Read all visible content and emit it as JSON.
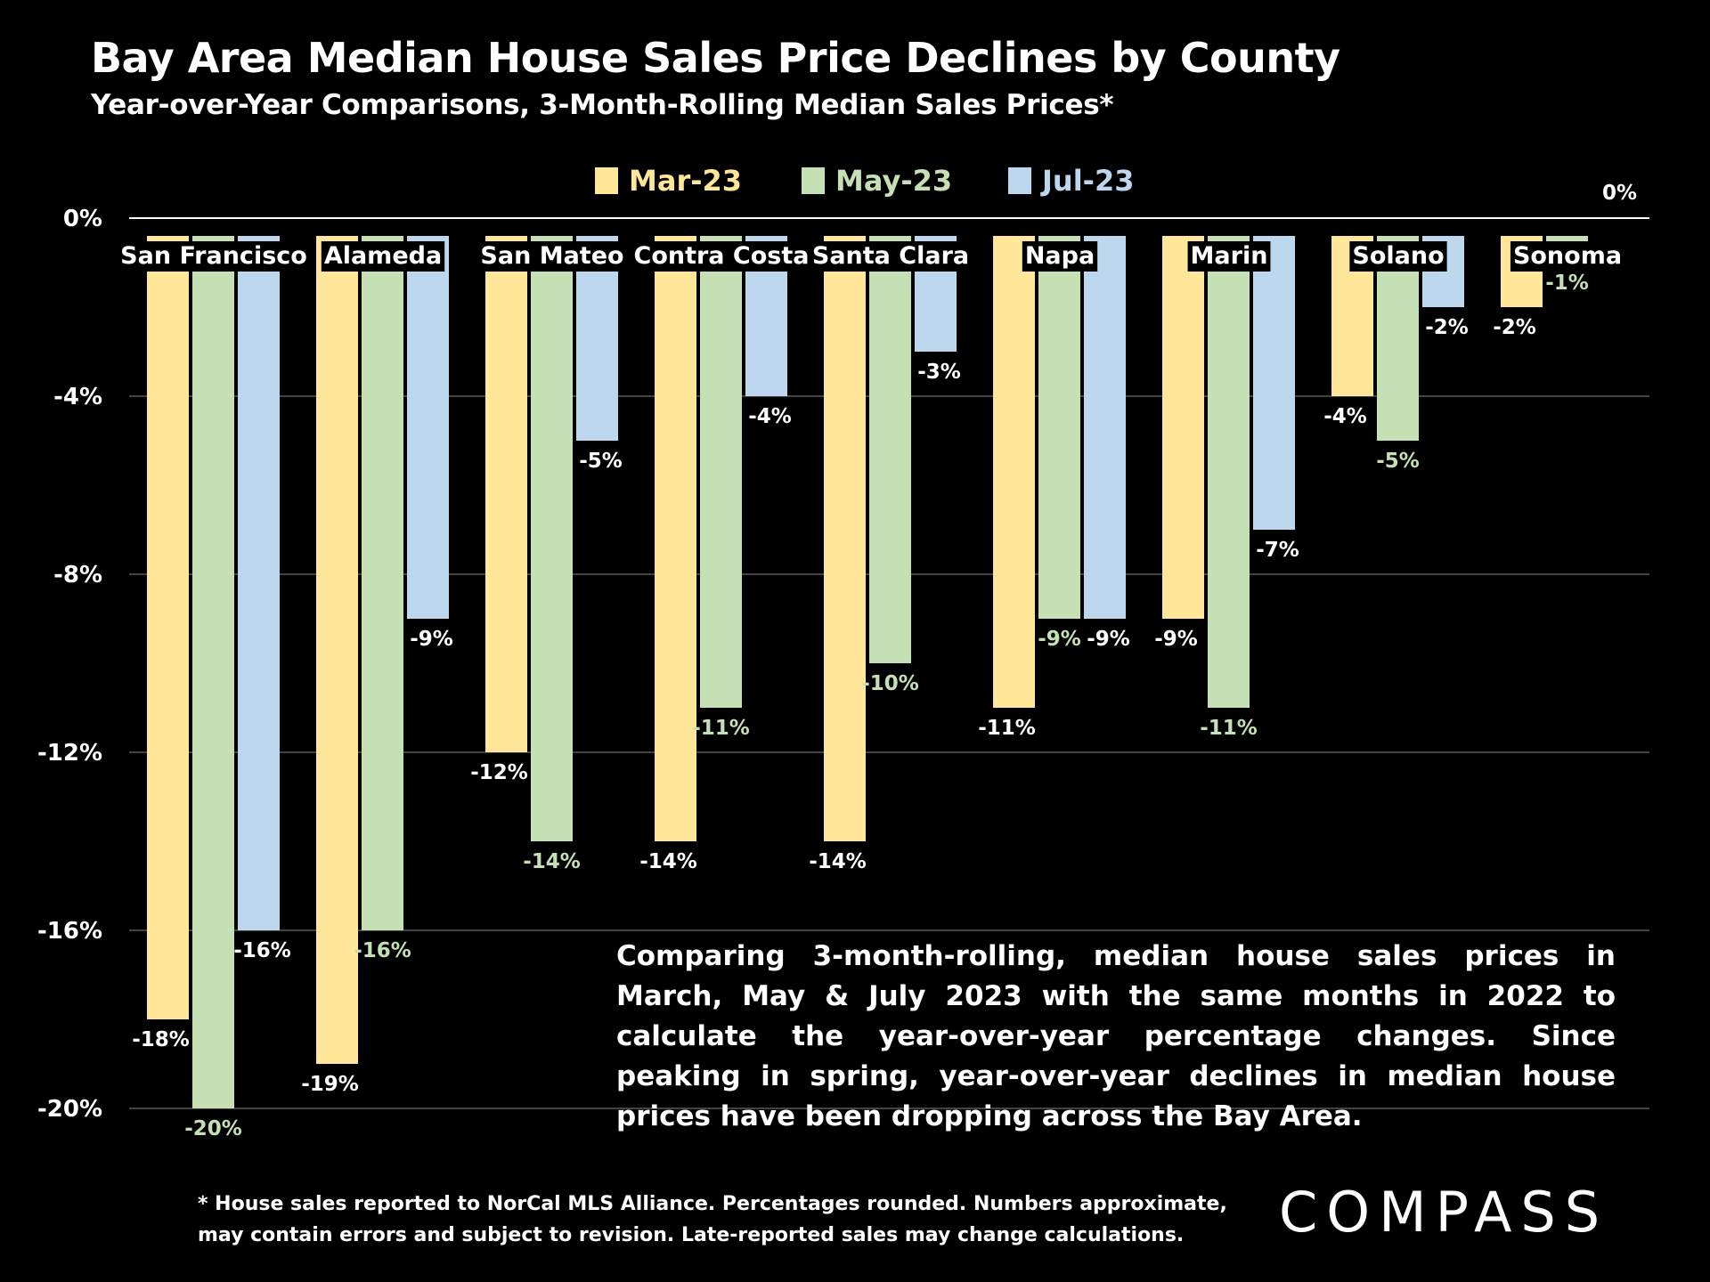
{
  "title": "Bay Area Median House Sales Price Declines by County",
  "subtitle": "Year-over-Year Comparisons, 3-Month-Rolling Median Sales Prices*",
  "note": "Comparing 3-month-rolling, median house sales prices in March, May & July 2023 with the same months in 2022 to calculate the year-over-year percentage changes. Since peaking in spring, year-over-year declines in median house prices have been dropping across the Bay Area.",
  "footnote_line1": "* House sales reported to NorCal MLS Alliance. Percentages rounded. Numbers approximate,",
  "footnote_line2": "may contain errors and subject to revision. Late-reported sales may change calculations.",
  "logo": "COMPASS",
  "colors": {
    "background": "#000000",
    "mar": "#ffe699",
    "may": "#c5e0b4",
    "jul": "#bdd7ee",
    "gridline": "#595959"
  },
  "chart_data": {
    "type": "bar",
    "categories": [
      "San Francisco",
      "Alameda",
      "San Mateo",
      "Contra Costa",
      "Santa Clara",
      "Napa",
      "Marin",
      "Solano",
      "Sonoma"
    ],
    "series": [
      {
        "name": "Mar-23",
        "values": [
          -18,
          -19,
          -12,
          -14,
          -14,
          -11,
          -9,
          -4,
          -2
        ],
        "labels": [
          "-18%",
          "-19%",
          "-12%",
          "-14%",
          "-14%",
          "-11%",
          "-9%",
          "-4%",
          "-2%"
        ]
      },
      {
        "name": "May-23",
        "values": [
          -20,
          -16,
          -14,
          -11,
          -10,
          -9,
          -11,
          -5,
          -1
        ],
        "labels": [
          "-20%",
          "-16%",
          "-14%",
          "-11%",
          "-10%",
          "-9%",
          "-11%",
          "-5%",
          "-1%"
        ]
      },
      {
        "name": "Jul-23",
        "values": [
          -16,
          -9,
          -5,
          -4,
          -3,
          -9,
          -7,
          -2,
          0
        ],
        "labels": [
          "-16%",
          "-9%",
          "-5%",
          "-4%",
          "-3%",
          "-9%",
          "-7%",
          "-2%",
          "0%"
        ]
      }
    ],
    "ylim": [
      -20,
      0
    ],
    "yticks": [
      0,
      -4,
      -8,
      -12,
      -16,
      -20
    ],
    "ytick_labels": [
      "0%",
      "-4%",
      "-8%",
      "-12%",
      "-16%",
      "-20%"
    ],
    "grid": true,
    "legend": "top-center"
  }
}
